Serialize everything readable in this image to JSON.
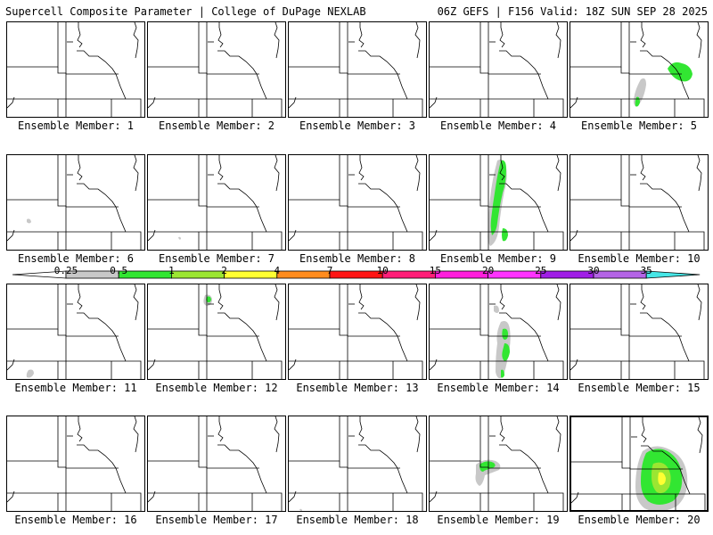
{
  "header": {
    "left_title": "Supercell Composite Parameter | College of DuPage NEXLAB",
    "right_title": "06Z GEFS | F156 Valid: 18Z SUN SEP 28 2025"
  },
  "members": [
    {
      "label": "Ensemble Member: 1"
    },
    {
      "label": "Ensemble Member: 2"
    },
    {
      "label": "Ensemble Member: 3"
    },
    {
      "label": "Ensemble Member: 4"
    },
    {
      "label": "Ensemble Member: 5"
    },
    {
      "label": "Ensemble Member: 6"
    },
    {
      "label": "Ensemble Member: 7"
    },
    {
      "label": "Ensemble Member: 8"
    },
    {
      "label": "Ensemble Member: 9"
    },
    {
      "label": "Ensemble Member: 10"
    },
    {
      "label": "Ensemble Member: 11"
    },
    {
      "label": "Ensemble Member: 12"
    },
    {
      "label": "Ensemble Member: 13"
    },
    {
      "label": "Ensemble Member: 14"
    },
    {
      "label": "Ensemble Member: 15"
    },
    {
      "label": "Ensemble Member: 16"
    },
    {
      "label": "Ensemble Member: 17"
    },
    {
      "label": "Ensemble Member: 18"
    },
    {
      "label": "Ensemble Member: 19"
    },
    {
      "label": "Ensemble Member: 20"
    }
  ],
  "colorbar": {
    "ticks": [
      "0.25",
      "0.5",
      "1",
      "2",
      "4",
      "7",
      "10",
      "15",
      "20",
      "25",
      "30",
      "35"
    ],
    "colors": [
      "#c8c8c8",
      "#32e632",
      "#9be632",
      "#ffff32",
      "#ff8c1e",
      "#ff1414",
      "#ff1e78",
      "#ff1edc",
      "#ff32ff",
      "#a01ee6",
      "#b464e6",
      "#46e6e6"
    ]
  }
}
